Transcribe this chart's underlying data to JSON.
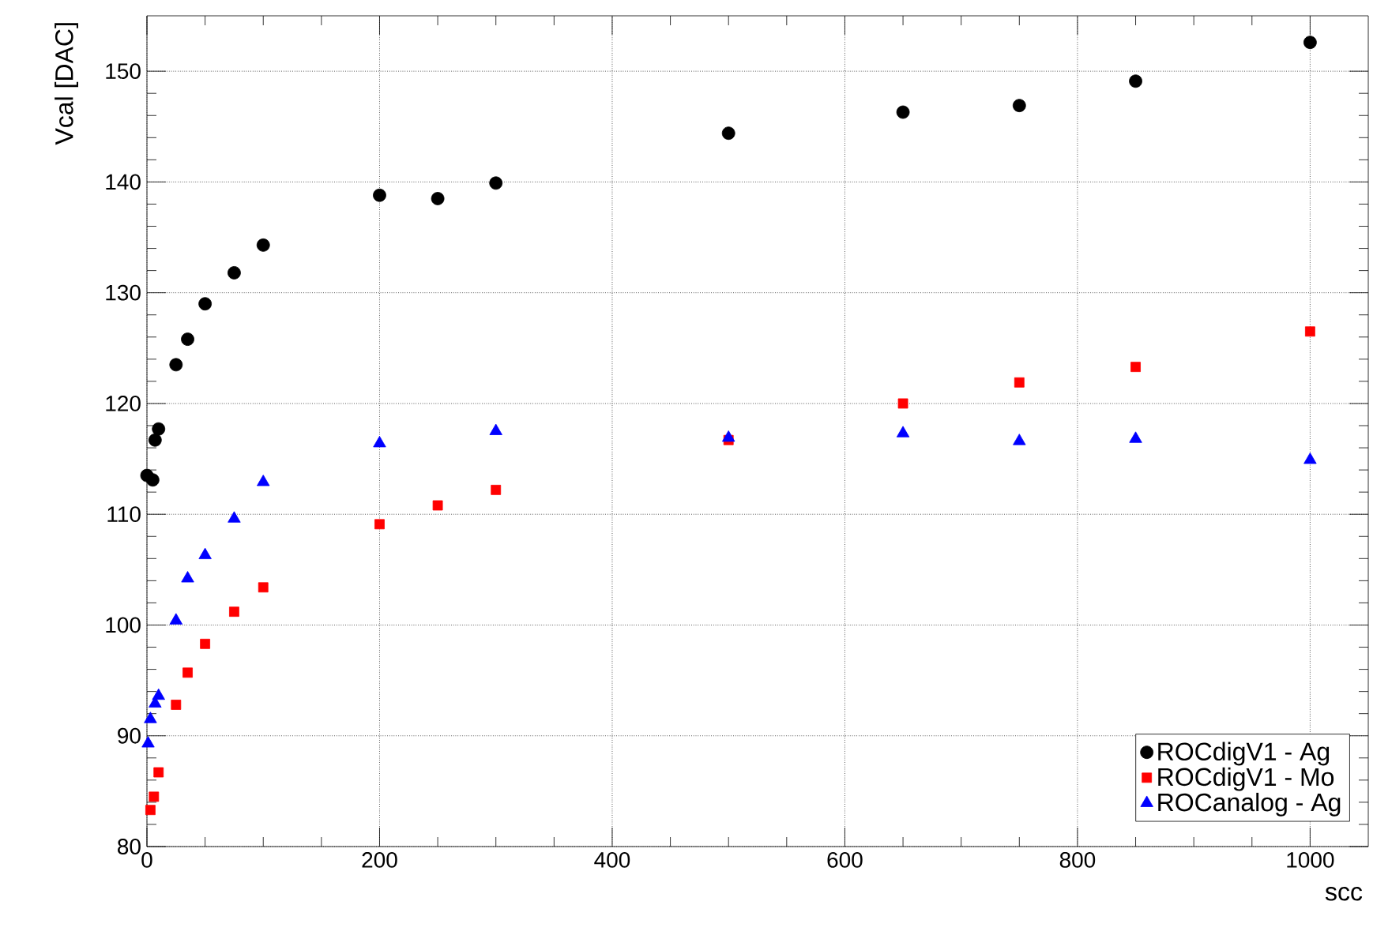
{
  "chart_data": {
    "type": "scatter",
    "xlabel": "scc",
    "ylabel": "Vcal [DAC]",
    "xlim": [
      0,
      1050
    ],
    "ylim": [
      80,
      155
    ],
    "xticks": [
      0,
      200,
      400,
      600,
      800,
      1000
    ],
    "yticks": [
      80,
      90,
      100,
      110,
      120,
      130,
      140,
      150
    ],
    "grid": true,
    "legend": "bottom right",
    "series": [
      {
        "name": "ROCdigV1   -  Ag",
        "color": "#000000",
        "marker": "circle",
        "x": [
          0,
          5,
          7,
          10,
          25,
          35,
          50,
          75,
          100,
          200,
          250,
          300,
          500,
          650,
          750,
          850,
          1000
        ],
        "values": [
          113.5,
          113.1,
          116.7,
          117.7,
          123.5,
          125.8,
          129.0,
          131.8,
          134.3,
          138.8,
          138.5,
          139.9,
          144.4,
          146.3,
          146.9,
          149.1,
          152.6
        ]
      },
      {
        "name": "ROCdigV1   -  Mo",
        "color": "#ff0000",
        "marker": "square",
        "x": [
          3,
          6,
          10,
          25,
          35,
          50,
          75,
          100,
          200,
          250,
          300,
          500,
          650,
          750,
          850,
          1000
        ],
        "values": [
          83.3,
          84.5,
          86.7,
          92.8,
          95.7,
          98.3,
          101.2,
          103.4,
          109.1,
          110.8,
          112.2,
          116.7,
          120.0,
          121.9,
          123.3,
          126.5
        ]
      },
      {
        "name": "ROCanalog -  Ag",
        "color": "#0000ff",
        "marker": "triangle",
        "x": [
          1,
          3,
          7,
          10,
          25,
          35,
          50,
          75,
          100,
          200,
          300,
          500,
          650,
          750,
          850,
          1000
        ],
        "values": [
          89.3,
          91.5,
          92.9,
          93.6,
          100.4,
          104.2,
          106.3,
          109.6,
          112.9,
          116.4,
          117.5,
          116.9,
          117.3,
          116.6,
          116.8,
          114.9
        ]
      }
    ]
  }
}
